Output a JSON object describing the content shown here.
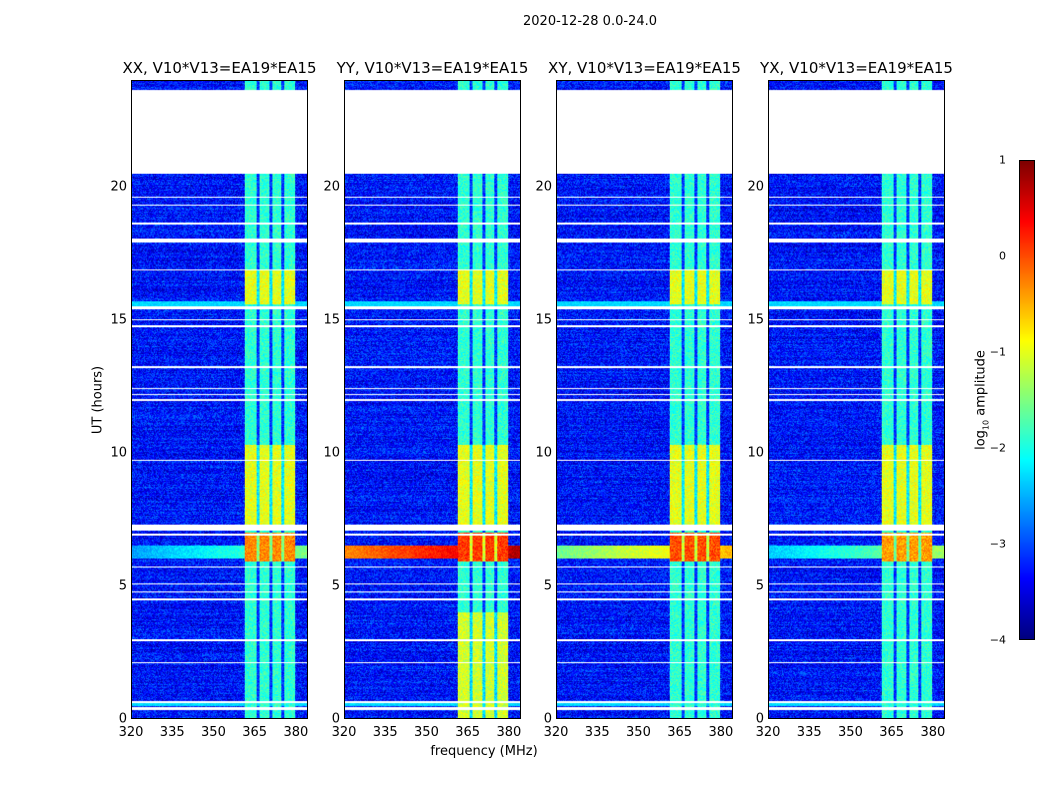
{
  "chart_data": {
    "type": "heatmap",
    "title": "2020-12-28 0.0-24.0",
    "xlabel": "frequency (MHz)",
    "ylabel": "UT (hours)",
    "xlim": [
      320,
      384.4
    ],
    "ylim": [
      0,
      24
    ],
    "xticks": [
      "320",
      "335",
      "350",
      "365",
      "380"
    ],
    "xtick_values": [
      320,
      335,
      350,
      365,
      380
    ],
    "yticks": [
      "0",
      "5",
      "10",
      "15",
      "20"
    ],
    "ytick_values": [
      0,
      5,
      10,
      15,
      20
    ],
    "colorbar": {
      "label_prefix": "log",
      "label_sub": "10",
      "label_suffix": " amplitude",
      "colormap": "jet",
      "range": [
        -4,
        1
      ],
      "ticks": [
        "1",
        "0",
        "−1",
        "−2",
        "−3",
        "−4"
      ],
      "tick_values": [
        1,
        0,
        -1,
        -2,
        -3,
        -4
      ]
    },
    "panels": [
      {
        "title": "XX, V10*V13=EA19*EA15",
        "hot_6h": -0.3,
        "wide_6h": -2.6
      },
      {
        "title": "YY, V10*V13=EA19*EA15",
        "hot_6h": 0.1,
        "wide_6h": -0.3
      },
      {
        "title": "XY, V10*V13=EA19*EA15",
        "hot_6h": 0.0,
        "wide_6h": -1.6
      },
      {
        "title": "YX, V10*V13=EA19*EA15",
        "hot_6h": -0.4,
        "wide_6h": -2.4
      }
    ],
    "background_level": -3.3,
    "rfi_band_mhz": [
      361.5,
      380
    ],
    "subband_gaps_mhz": [
      366.5,
      371,
      375.5
    ],
    "flagged_hours": [
      [
        20.5,
        23.65
      ],
      [
        0.3,
        0.4
      ],
      [
        0.55,
        0.62
      ],
      [
        2.05,
        2.1
      ],
      [
        2.9,
        2.95
      ],
      [
        4.45,
        4.5
      ],
      [
        4.72,
        4.77
      ],
      [
        5.03,
        5.08
      ],
      [
        5.68,
        5.72
      ],
      [
        6.88,
        6.93
      ],
      [
        7.05,
        7.3
      ],
      [
        9.68,
        9.72
      ],
      [
        11.95,
        12.0
      ],
      [
        12.18,
        12.22
      ],
      [
        12.4,
        12.45
      ],
      [
        13.2,
        13.25
      ],
      [
        14.73,
        14.78
      ],
      [
        14.98,
        15.03
      ],
      [
        15.4,
        15.5
      ],
      [
        16.88,
        16.92
      ],
      [
        17.9,
        18.05
      ],
      [
        18.6,
        18.65
      ],
      [
        19.3,
        19.35
      ],
      [
        19.6,
        19.65
      ]
    ]
  }
}
